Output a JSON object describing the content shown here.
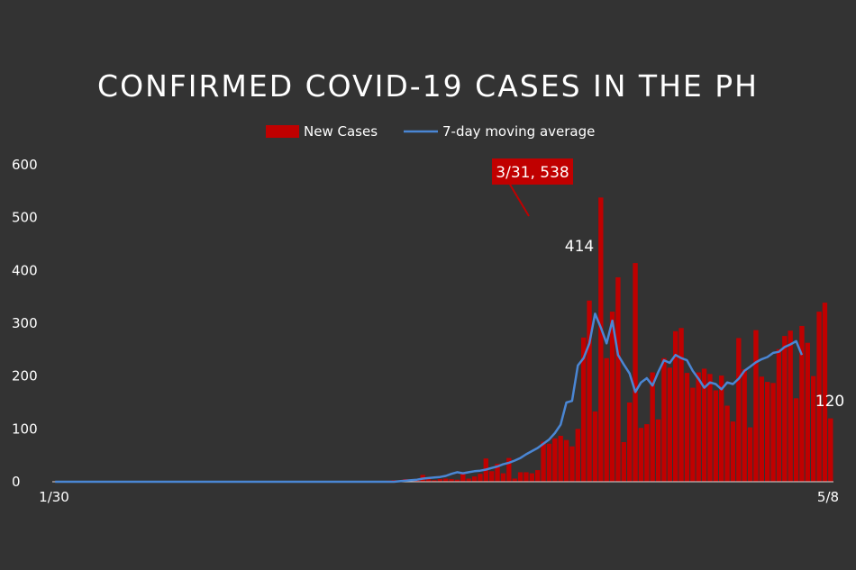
{
  "chart_data": {
    "type": "bar",
    "title": "CONFIRMED COVID-19 CASES IN THE PH",
    "xlabel": "",
    "ylabel": "",
    "ylim": [
      0,
      600
    ],
    "yticks": [
      "0",
      "100",
      "200",
      "300",
      "400",
      "500",
      "600"
    ],
    "x_tick_labels": [
      "1/30",
      "5/8"
    ],
    "grid": false,
    "legend_position": "top-center",
    "colors": {
      "background": "#333333",
      "bars": "#c00000",
      "line": "#4a86d4",
      "text": "#ffffff",
      "callout": "#c00000"
    },
    "series": [
      {
        "name": "New Cases",
        "type": "bar",
        "values": [
          1,
          0,
          1,
          0,
          0,
          1,
          0,
          0,
          0,
          0,
          0,
          0,
          0,
          0,
          0,
          0,
          0,
          0,
          0,
          0,
          0,
          0,
          0,
          0,
          0,
          0,
          0,
          0,
          0,
          0,
          0,
          0,
          0,
          0,
          0,
          0,
          0,
          0,
          0,
          0,
          0,
          0,
          0,
          0,
          0,
          0,
          0,
          0,
          0,
          0,
          0,
          0,
          0,
          0,
          0,
          0,
          0,
          0,
          2,
          3,
          1,
          5,
          2,
          5,
          13,
          5,
          3,
          5,
          6,
          5,
          4,
          15,
          6,
          10,
          15,
          44,
          20,
          34,
          16,
          45,
          6,
          18,
          18,
          16,
          22,
          76,
          72,
          82,
          87,
          79,
          67,
          100,
          273,
          343,
          133,
          538,
          234,
          322,
          387,
          75,
          150,
          414,
          102,
          109,
          207,
          118,
          234,
          216,
          285,
          291,
          206,
          178,
          207,
          214,
          204,
          173,
          201,
          144,
          114,
          272,
          213,
          103,
          287,
          199,
          189,
          187,
          251,
          276,
          286,
          158,
          295,
          263,
          200,
          322,
          339,
          120
        ]
      },
      {
        "name": "7-day moving average",
        "type": "line",
        "values": [
          0,
          0,
          0,
          0,
          0,
          0,
          0,
          0,
          0,
          0,
          0,
          0,
          0,
          0,
          0,
          0,
          0,
          0,
          0,
          0,
          0,
          0,
          0,
          0,
          0,
          0,
          0,
          0,
          0,
          0,
          0,
          0,
          0,
          0,
          0,
          0,
          0,
          0,
          0,
          0,
          0,
          0,
          0,
          0,
          0,
          0,
          0,
          0,
          0,
          0,
          0,
          0,
          0,
          0,
          0,
          0,
          0,
          0,
          0,
          0,
          1,
          2,
          3,
          4,
          6,
          7,
          8,
          9,
          11,
          15,
          18,
          16,
          18,
          20,
          21,
          23,
          26,
          29,
          33,
          36,
          40,
          45,
          52,
          58,
          64,
          72,
          80,
          92,
          108,
          150,
          153,
          220,
          234,
          262,
          318,
          292,
          262,
          305,
          240,
          222,
          205,
          170,
          188,
          196,
          182,
          208,
          230,
          225,
          240,
          234,
          230,
          210,
          195,
          178,
          188,
          185,
          175,
          188,
          185,
          195,
          210,
          218,
          226,
          232,
          236,
          244,
          246,
          255,
          260,
          266,
          240
        ]
      }
    ],
    "annotations": [
      {
        "text": "3/31, 538",
        "style": "callout"
      },
      {
        "text": "414",
        "style": "label"
      },
      {
        "text": "120",
        "style": "label"
      }
    ]
  }
}
